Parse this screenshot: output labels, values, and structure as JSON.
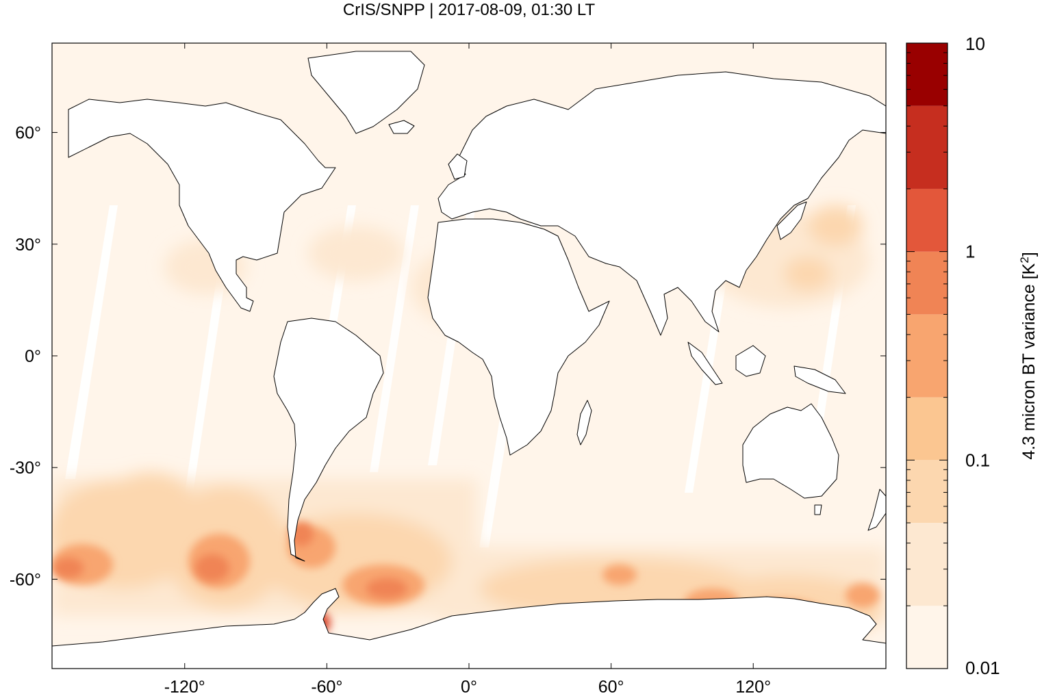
{
  "title": "CrIS/SNPP | 2017-08-09, 01:30 LT",
  "colors": {
    "ocean_fill": "#fff5ea",
    "land_fill": "#ffffff",
    "coastline": "#000000",
    "heavy_1": "#fbc691",
    "heavy_2": "#f29a63",
    "heavy_3": "#e3573a",
    "heavy_4": "#c62e1f"
  },
  "map": {
    "projection": "equirectangular",
    "lon_range": [
      -176,
      176
    ],
    "lat_range": [
      -84,
      84
    ],
    "x_ticks": [
      {
        "value": -120,
        "label": "-120°"
      },
      {
        "value": -60,
        "label": "-60°"
      },
      {
        "value": 0,
        "label": "0°"
      },
      {
        "value": 60,
        "label": "60°"
      },
      {
        "value": 120,
        "label": "120°"
      }
    ],
    "y_ticks": [
      {
        "value": 60,
        "label": "60°"
      },
      {
        "value": 30,
        "label": "30°"
      },
      {
        "value": 0,
        "label": "0°"
      },
      {
        "value": -30,
        "label": "-30°"
      },
      {
        "value": -60,
        "label": "-60°"
      }
    ]
  },
  "colorbar": {
    "scale": "log",
    "range": [
      0.01,
      10
    ],
    "ticks": [
      {
        "value": 10,
        "label": "10"
      },
      {
        "value": 1,
        "label": "1"
      },
      {
        "value": 0.1,
        "label": "0.1"
      },
      {
        "value": 0.01,
        "label": "0.01"
      }
    ],
    "label": "4.3 micron BT variance [K",
    "label_superscript": "2",
    "label_close": "]",
    "bins": [
      {
        "lo": 0.01,
        "hi": 0.02,
        "color": "#fff5ea"
      },
      {
        "lo": 0.02,
        "hi": 0.05,
        "color": "#fde8d1"
      },
      {
        "lo": 0.05,
        "hi": 0.1,
        "color": "#fcd7af"
      },
      {
        "lo": 0.1,
        "hi": 0.2,
        "color": "#fbc691"
      },
      {
        "lo": 0.2,
        "hi": 0.5,
        "color": "#f8a56f"
      },
      {
        "lo": 0.5,
        "hi": 1,
        "color": "#f08455"
      },
      {
        "lo": 1,
        "hi": 2,
        "color": "#e3573a"
      },
      {
        "lo": 2,
        "hi": 5,
        "color": "#c62e1f"
      },
      {
        "lo": 5,
        "hi": 10,
        "color": "#990000"
      }
    ]
  }
}
